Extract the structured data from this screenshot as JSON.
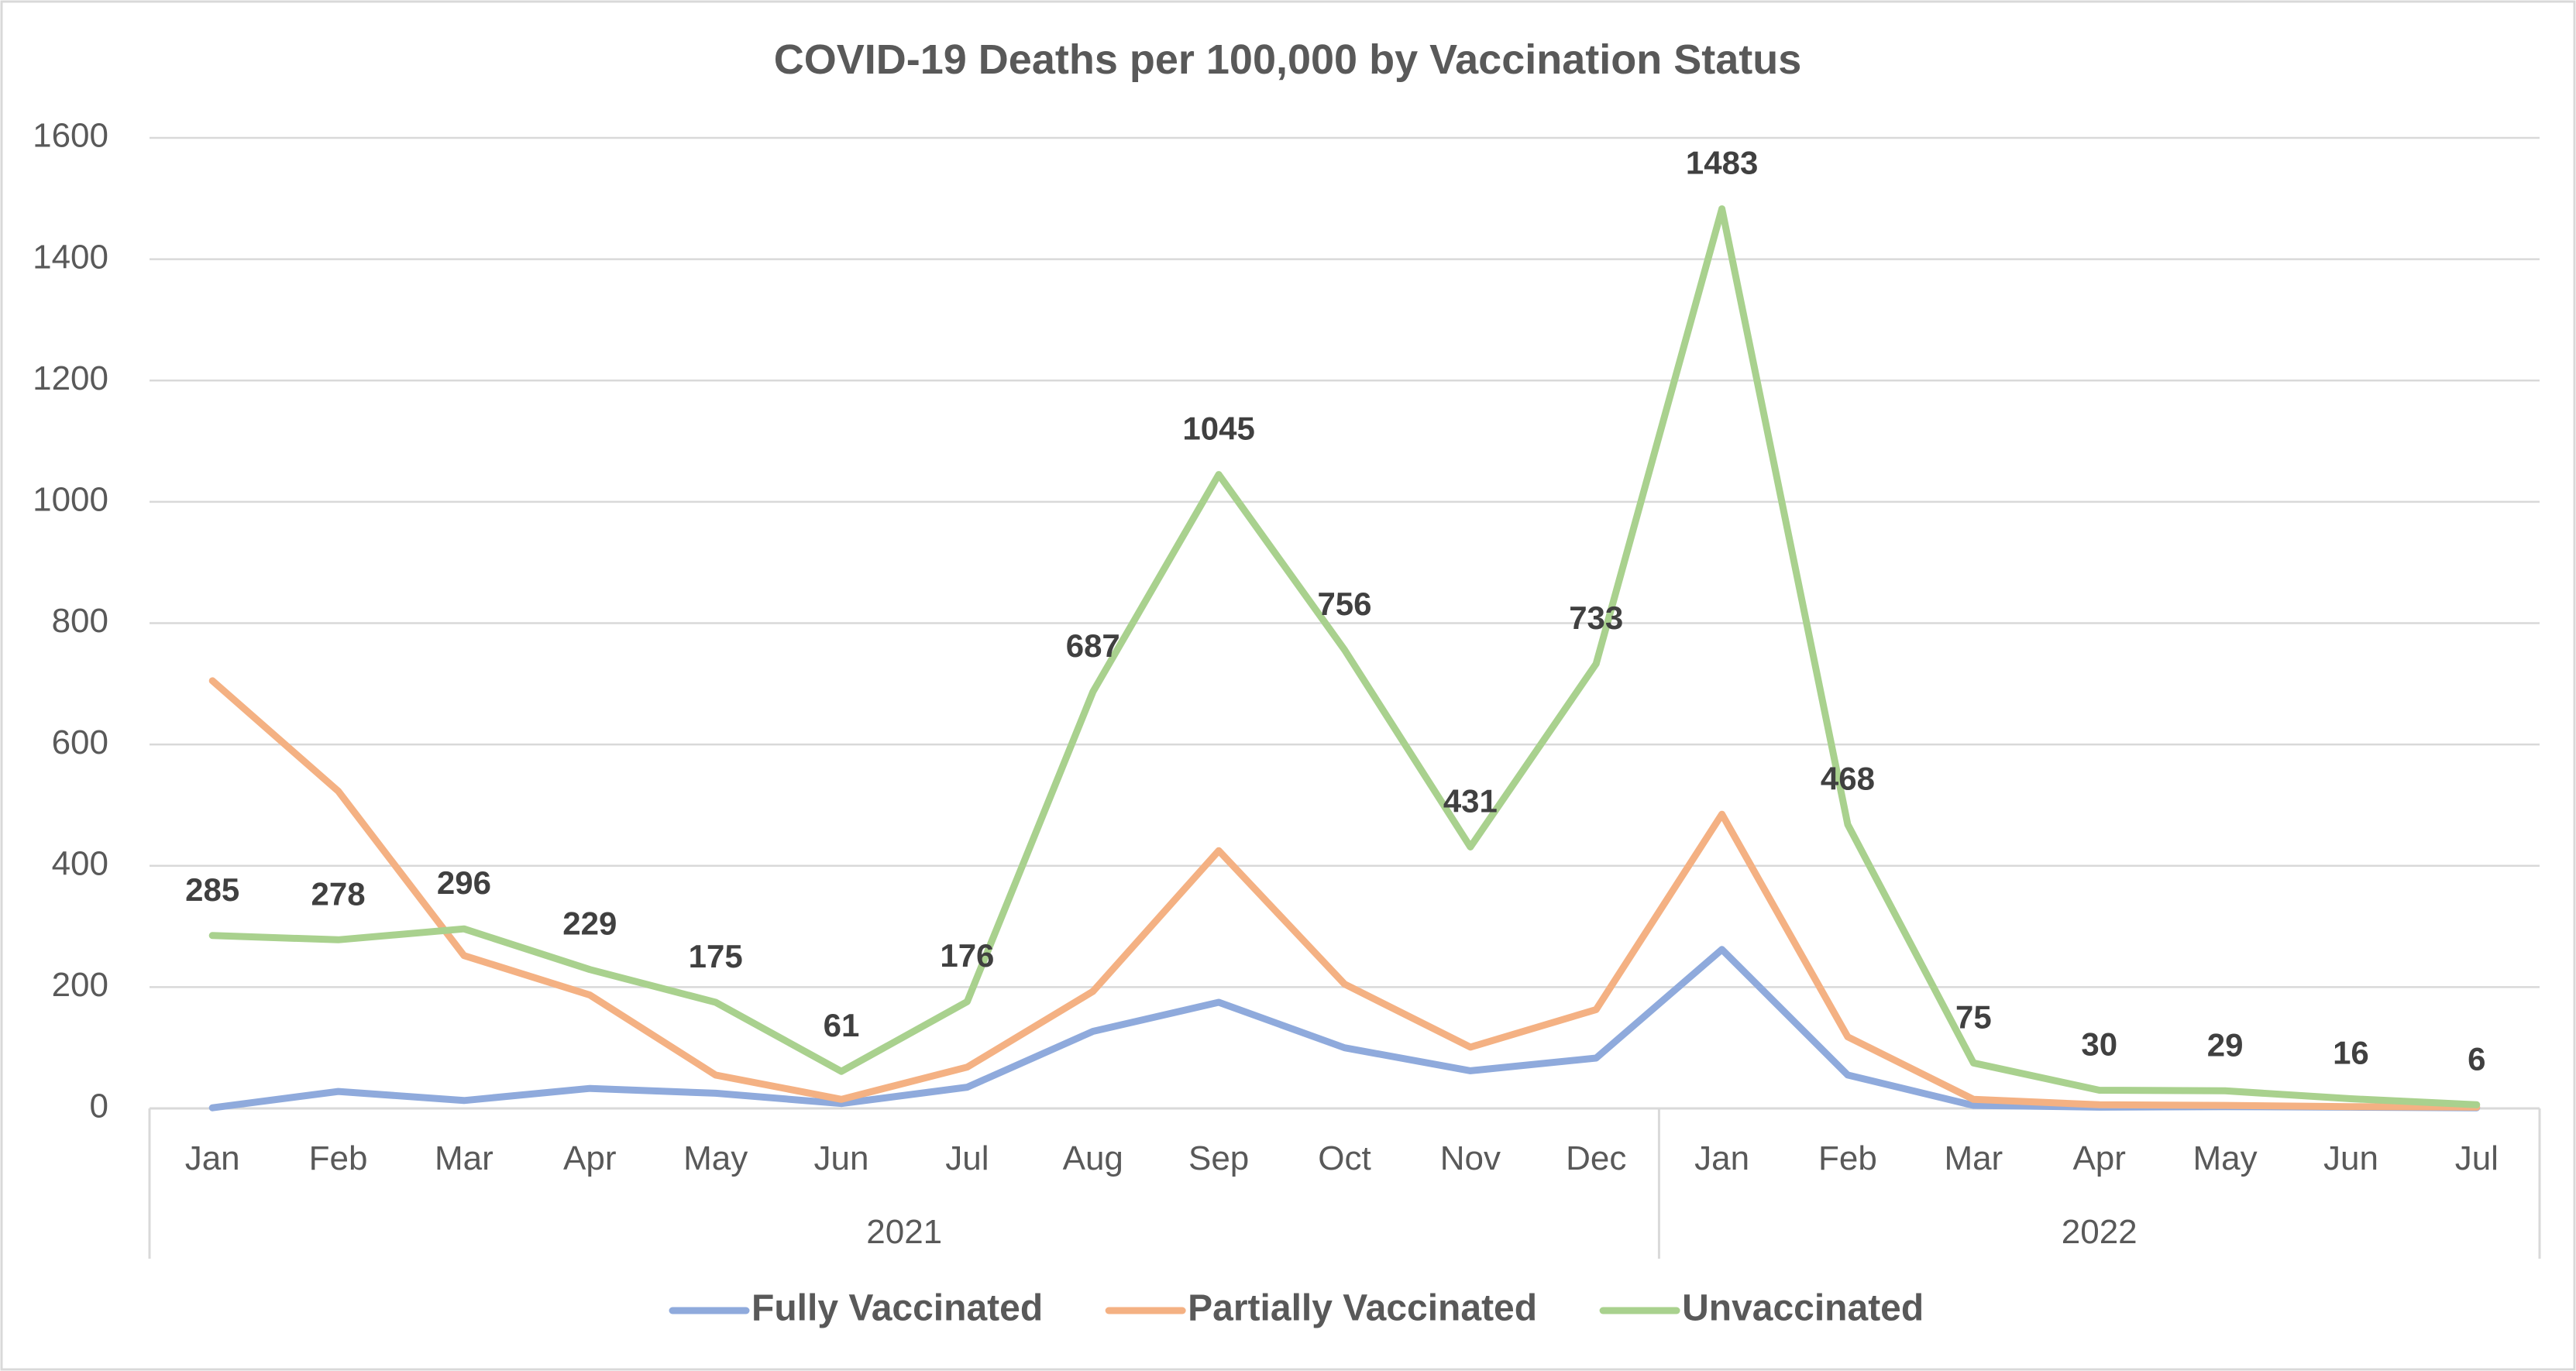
{
  "chart_data": {
    "type": "line",
    "title": "COVID-19 Deaths per 100,000 by Vaccination Status",
    "xlabel": "",
    "ylabel": "",
    "ylim": [
      0,
      1600
    ],
    "yticks": [
      "0",
      "200",
      "400",
      "600",
      "800",
      "1000",
      "1200",
      "1400",
      "1600"
    ],
    "categories": [
      "Jan",
      "Feb",
      "Mar",
      "Apr",
      "May",
      "Jun",
      "Jul",
      "Aug",
      "Sep",
      "Oct",
      "Nov",
      "Dec",
      "Jan",
      "Feb",
      "Mar",
      "Apr",
      "May",
      "Jun",
      "Jul"
    ],
    "year_groups": [
      {
        "label": "2021",
        "start": 0,
        "end": 11
      },
      {
        "label": "2022",
        "start": 12,
        "end": 18
      }
    ],
    "grid": true,
    "legend_position": "bottom",
    "series": [
      {
        "name": "Fully Vaccinated",
        "color": "#8faadc",
        "values": [
          1,
          28,
          13,
          33,
          25,
          8,
          35,
          127,
          175,
          100,
          62,
          83,
          262,
          55,
          5,
          2,
          3,
          2,
          1
        ]
      },
      {
        "name": "Partially Vaccinated",
        "color": "#f4b183",
        "values": [
          705,
          523,
          252,
          187,
          55,
          15,
          68,
          193,
          425,
          205,
          101,
          163,
          485,
          118,
          15,
          6,
          5,
          3,
          2
        ]
      },
      {
        "name": "Unvaccinated",
        "color": "#a9d18e",
        "values": [
          285,
          278,
          296,
          229,
          175,
          61,
          176,
          687,
          1045,
          756,
          431,
          733,
          1483,
          468,
          75,
          30,
          29,
          16,
          6
        ],
        "data_labels": [
          "285",
          "278",
          "296",
          "229",
          "175",
          "61",
          "176",
          "687",
          "1045",
          "756",
          "431",
          "733",
          "1483",
          "468",
          "75",
          "30",
          "29",
          "16",
          "6"
        ]
      }
    ]
  }
}
